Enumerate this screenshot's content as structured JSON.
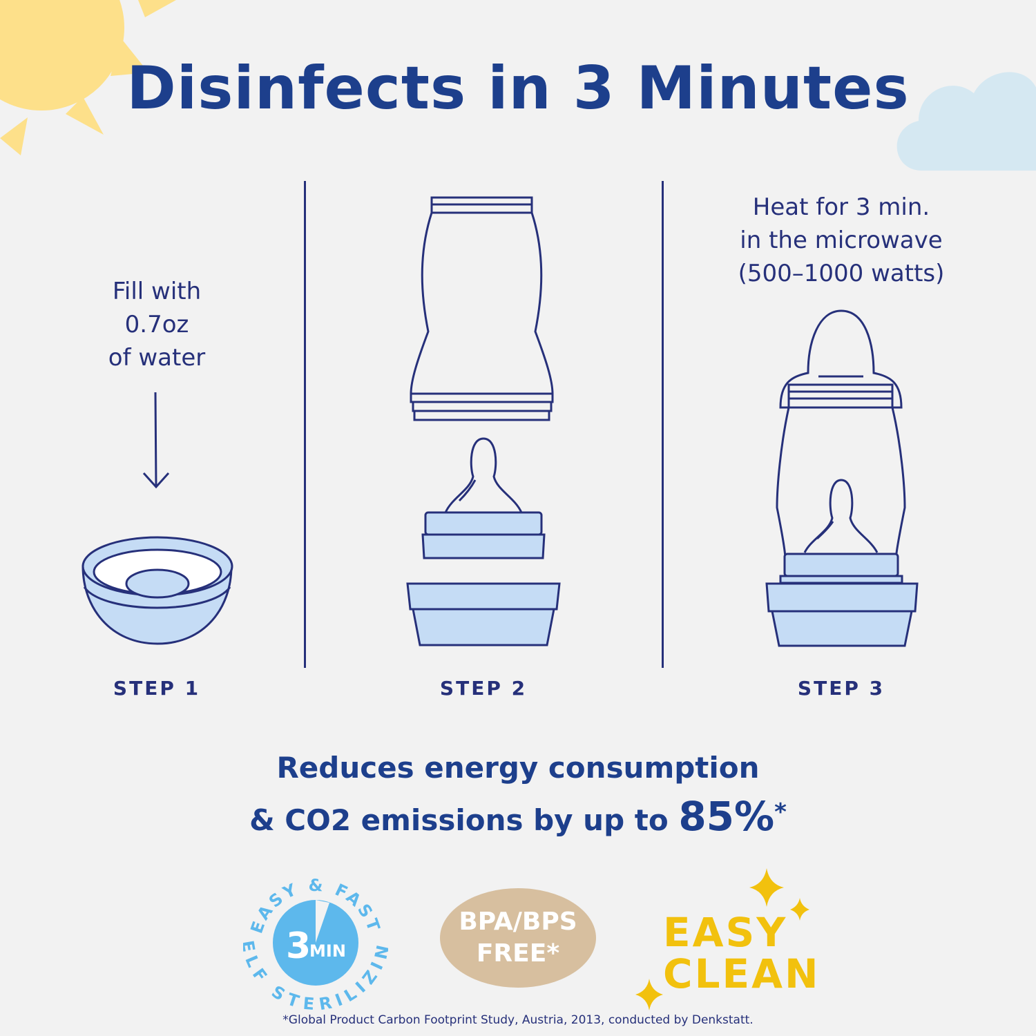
{
  "title": "Disinfects in 3 Minutes",
  "steps": [
    {
      "label": "STEP 1",
      "instruction": [
        "Fill with",
        "0.7oz",
        "of water"
      ]
    },
    {
      "label": "STEP 2"
    },
    {
      "label": "STEP 3",
      "instruction": [
        "Heat for 3 min.",
        "in the microwave",
        "(500–1000 watts)"
      ]
    }
  ],
  "claim": {
    "line1": "Reduces energy consumption",
    "line2": "& CO2 emissions by up to",
    "highlight": "85%",
    "mark": "*"
  },
  "badges": {
    "sterilizing": {
      "top_arc": "EASY & FAST",
      "bottom_arc": "SELF STERILIZING",
      "number": "3",
      "unit": "MIN",
      "color": "#5db8ec"
    },
    "bpa": {
      "line1": "BPA/BPS",
      "line2": "FREE*",
      "color": "#d7bf9f"
    },
    "easy_clean": {
      "line1": "EASY",
      "line2": "CLEAN",
      "color": "#f2c10e"
    }
  },
  "footnote": "*Global Product Carbon Footprint Study, Austria, 2013, conducted by Denkstatt.",
  "colors": {
    "title": "#1d3f8c",
    "line": "#26307a",
    "fill": "#c5dcf5",
    "sun": "#fde08a",
    "cloud": "#d5e8f2",
    "background": "#f2f2f2"
  }
}
